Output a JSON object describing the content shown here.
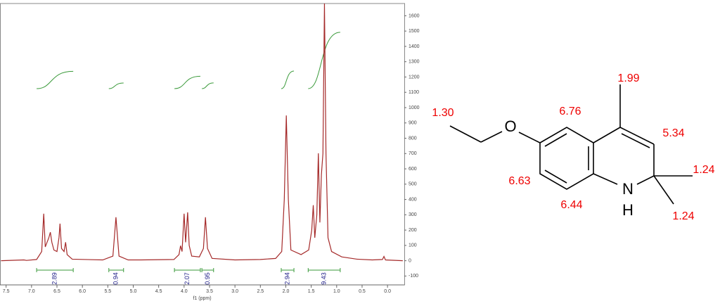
{
  "chart_data": {
    "type": "line",
    "x_label": "f1 (ppm)",
    "x": [
      7.6,
      7.15,
      7.1,
      6.9,
      6.8,
      6.76,
      6.73,
      6.66,
      6.63,
      6.6,
      6.56,
      6.5,
      6.46,
      6.44,
      6.41,
      6.36,
      6.33,
      6.3,
      6.2,
      5.6,
      5.4,
      5.34,
      5.28,
      5.1,
      4.85,
      4.2,
      4.1,
      4.07,
      4.04,
      4.0,
      3.97,
      3.93,
      3.9,
      3.85,
      3.7,
      3.62,
      3.58,
      3.54,
      3.45,
      3.0,
      2.5,
      2.2,
      2.08,
      2.03,
      1.99,
      1.95,
      1.9,
      1.7,
      1.55,
      1.49,
      1.46,
      1.43,
      1.39,
      1.36,
      1.33,
      1.3,
      1.27,
      1.24,
      1.21,
      1.17,
      1.1,
      0.9,
      0.6,
      0.3,
      0.1,
      0.07,
      0.04,
      -0.3
    ],
    "values": [
      0,
      5,
      2,
      8,
      60,
      307,
      90,
      150,
      186,
      120,
      70,
      60,
      150,
      242,
      80,
      60,
      121,
      40,
      10,
      5,
      30,
      284,
      30,
      5,
      5,
      8,
      40,
      98,
      60,
      307,
      120,
      316,
      100,
      30,
      25,
      80,
      284,
      80,
      15,
      5,
      8,
      15,
      60,
      400,
      949,
      400,
      70,
      40,
      70,
      200,
      363,
      150,
      300,
      702,
      250,
      563,
      700,
      1680,
      700,
      150,
      60,
      25,
      10,
      5,
      8,
      28,
      5,
      0
    ],
    "color": "#a52a2a",
    "xlim": [
      7.62,
      -0.33
    ],
    "ylim": [
      -135,
      1680
    ],
    "xticks": [
      7.5,
      {
        "value": 7,
        "label": "7.0"
      },
      6.5,
      {
        "value": 6,
        "label": "6.0"
      },
      5.5,
      {
        "value": 5,
        "label": "5.0"
      },
      4.5,
      {
        "value": 4,
        "label": "4.0"
      },
      3.5,
      {
        "value": 3,
        "label": "3.0"
      },
      2.5,
      {
        "value": 2,
        "label": "2.0"
      },
      1.5,
      {
        "value": 1,
        "label": "1.0"
      },
      0.5,
      {
        "value": 0,
        "label": "0.0"
      }
    ],
    "yticks": [
      -100,
      0,
      100,
      200,
      300,
      400,
      500,
      600,
      700,
      800,
      900,
      1000,
      1100,
      1200,
      1300,
      1400,
      1500,
      1600
    ],
    "integrals": [
      {
        "from": 6.9,
        "to": 6.18,
        "value": 2.89
      },
      {
        "from": 5.48,
        "to": 5.19,
        "value": 0.94
      },
      {
        "from": 4.19,
        "to": 3.68,
        "value": 2.07
      },
      {
        "from": 3.65,
        "to": 3.42,
        "value": 0.95
      },
      {
        "from": 2.09,
        "to": 1.84,
        "value": 2.94
      },
      {
        "from": 1.56,
        "to": 0.93,
        "value": 9.43
      }
    ],
    "integral_color": "#3a9a3a"
  },
  "structure": {
    "atoms": [
      "O",
      "N",
      "H"
    ],
    "shifts": [
      "1.30",
      "6.76",
      "1.99",
      "5.34",
      "1.24",
      "1.24",
      "6.63",
      "6.44"
    ]
  }
}
